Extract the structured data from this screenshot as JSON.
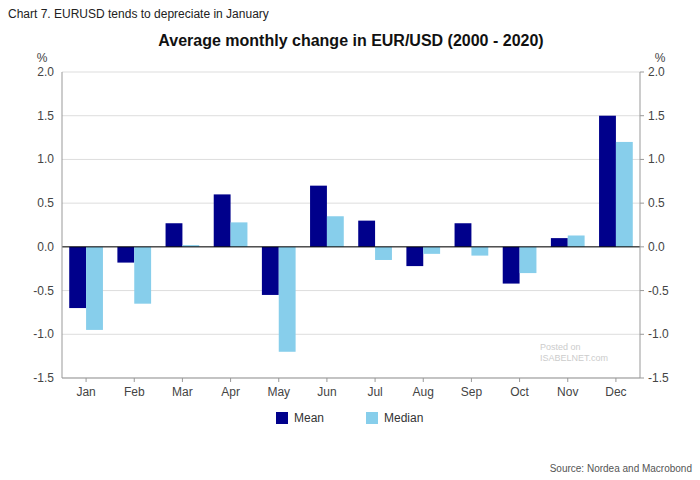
{
  "chart_data": {
    "type": "bar",
    "title": "Average monthly change in EUR/USD (2000 - 2020)",
    "subtitle": "Chart 7. EURUSD tends to depreciate in January",
    "source": "Source: Nordea and Macrobond",
    "annotations": [
      "Posted on",
      "ISABELNET.com"
    ],
    "ylabel": "%",
    "y2label": "%",
    "categories": [
      "Jan",
      "Feb",
      "Mar",
      "Apr",
      "May",
      "Jun",
      "Jul",
      "Aug",
      "Sep",
      "Oct",
      "Nov",
      "Dec"
    ],
    "series": [
      {
        "name": "Mean",
        "color": "#00008B",
        "values": [
          -0.7,
          -0.18,
          0.27,
          0.6,
          -0.55,
          0.7,
          0.3,
          -0.22,
          0.27,
          -0.42,
          0.1,
          1.5
        ]
      },
      {
        "name": "Median",
        "color": "#87CEEB",
        "values": [
          -0.95,
          -0.65,
          0.02,
          0.28,
          -1.2,
          0.35,
          -0.15,
          -0.08,
          -0.1,
          -0.3,
          0.13,
          1.2
        ]
      }
    ],
    "ylim": [
      -1.5,
      2.0
    ],
    "yticks": [
      -1.5,
      {
        "value": -1.0,
        "label": "-1.0"
      },
      -0.5,
      {
        "value": 0.0,
        "label": "0.0"
      },
      0.5,
      {
        "value": 1.0,
        "label": "1.0"
      },
      1.5,
      {
        "value": 2.0,
        "label": "2.0"
      }
    ],
    "y2lim": [
      -1.5,
      2.0
    ],
    "y2ticks": [
      -1.5,
      {
        "value": -1.0,
        "label": "-1.0"
      },
      -0.5,
      {
        "value": 0.0,
        "label": "0.0"
      },
      0.5,
      {
        "value": 1.0,
        "label": "1.0"
      },
      1.5,
      {
        "value": 2.0,
        "label": "2.0"
      }
    ],
    "grid": true,
    "legend": "bottom"
  }
}
